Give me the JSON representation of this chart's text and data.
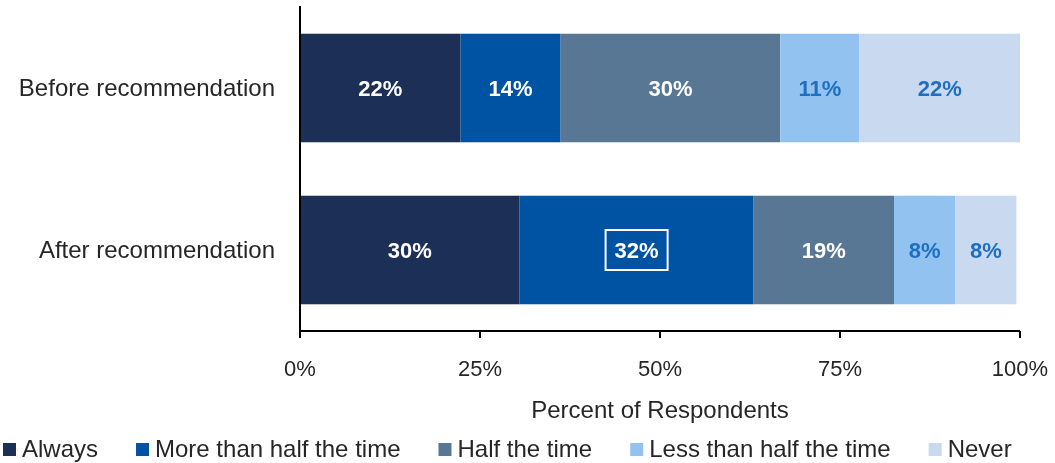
{
  "chart_data": {
    "type": "bar",
    "orientation": "horizontal",
    "stacked": true,
    "categories": [
      "Before recommendation",
      "After recommendation"
    ],
    "series": [
      {
        "name": "Always",
        "color": "#1b2f57",
        "values": [
          22.3,
          30.5
        ],
        "value_labels": [
          "22%",
          "30%"
        ]
      },
      {
        "name": "More than half the time",
        "color": "#0052a3",
        "values": [
          13.9,
          32.5
        ],
        "value_labels": [
          "14%",
          "32%"
        ]
      },
      {
        "name": "Half the time",
        "color": "#587794",
        "values": [
          30.5,
          19.5
        ],
        "value_labels": [
          "30%",
          "19%"
        ]
      },
      {
        "name": "Less than half the time",
        "color": "#92c2f0",
        "values": [
          11.0,
          8.5
        ],
        "value_labels": [
          "11%",
          "8%"
        ]
      },
      {
        "name": "Never",
        "color": "#c8d9f0",
        "values": [
          22.3,
          8.5
        ],
        "value_labels": [
          "22%",
          "8%"
        ]
      }
    ],
    "xlabel": "Percent of Respondents",
    "xlim": [
      0,
      100
    ],
    "xticks": [
      {
        "value": 0,
        "label": "0%"
      },
      {
        "value": 25,
        "label": "25%"
      },
      {
        "value": 50,
        "label": "50%"
      },
      {
        "value": 75,
        "label": "75%"
      },
      {
        "value": 100,
        "label": "100%"
      }
    ],
    "legend": "bottom"
  }
}
